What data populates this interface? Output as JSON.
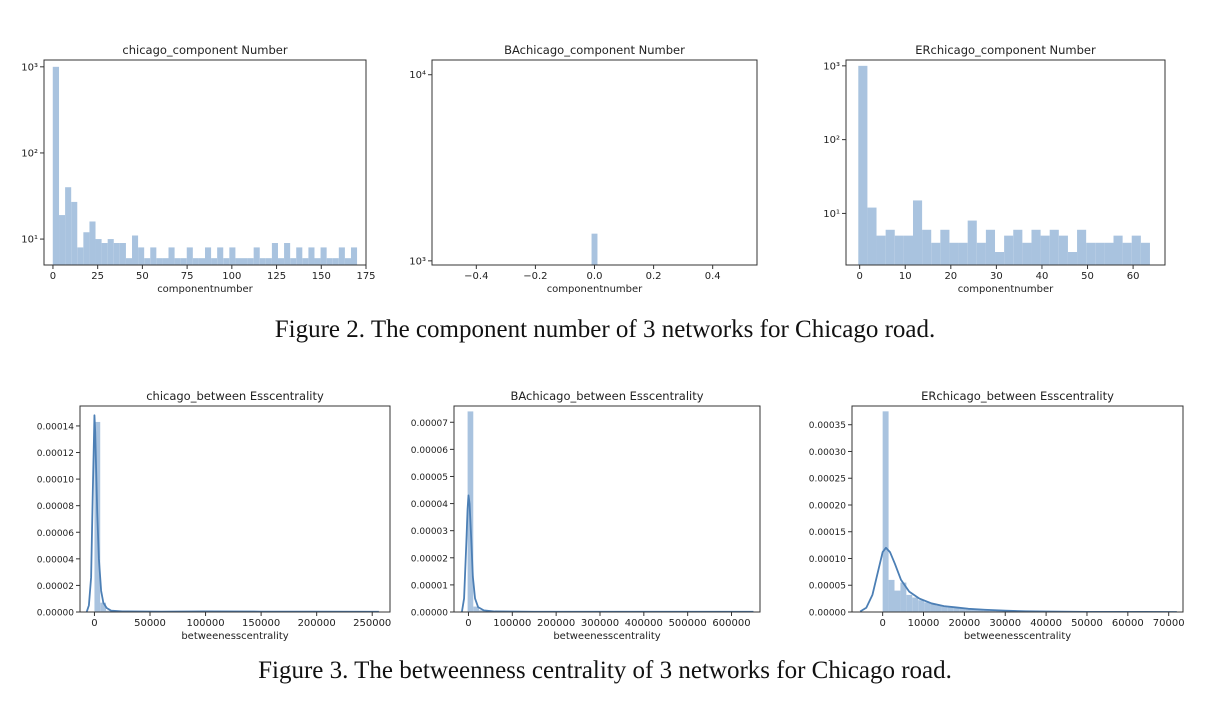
{
  "figures": [
    {
      "caption": "Figure 2. The component number of 3 networks for Chicago road."
    },
    {
      "caption": "Figure 3. The betweenness centrality of 3 networks for Chicago road."
    }
  ],
  "chart_data": [
    {
      "type": "bar",
      "title": "chicago_component Number",
      "xlabel": "componentnumber",
      "ylabel": "",
      "yscale": "log",
      "xlim": [
        -5,
        175
      ],
      "ylim": [
        5,
        1200
      ],
      "xticks": [
        0,
        25,
        50,
        75,
        100,
        125,
        150,
        175
      ],
      "yticks": [
        10,
        100,
        1000
      ],
      "ytick_labels": [
        "10¹",
        "10²",
        "10³"
      ],
      "bar_color": "#a9c3df",
      "bins": [
        [
          -0.1,
          3.4,
          1000
        ],
        [
          3.4,
          6.8,
          19
        ],
        [
          6.8,
          10.2,
          40
        ],
        [
          10.2,
          13.6,
          27
        ],
        [
          13.6,
          17.0,
          8
        ],
        [
          17.0,
          20.4,
          12
        ],
        [
          20.4,
          23.8,
          16
        ],
        [
          23.8,
          27.2,
          10
        ],
        [
          27.2,
          30.6,
          9
        ],
        [
          30.6,
          34.0,
          10
        ],
        [
          34.0,
          37.4,
          9
        ],
        [
          37.4,
          40.8,
          9
        ],
        [
          40.8,
          44.2,
          6
        ],
        [
          44.2,
          47.6,
          11
        ],
        [
          47.6,
          51.0,
          8
        ],
        [
          51.0,
          54.4,
          6
        ],
        [
          54.4,
          57.8,
          8
        ],
        [
          57.8,
          61.2,
          6
        ],
        [
          61.2,
          64.6,
          6
        ],
        [
          64.6,
          68.0,
          8
        ],
        [
          68.0,
          71.4,
          6
        ],
        [
          71.4,
          74.8,
          6
        ],
        [
          74.8,
          78.2,
          8
        ],
        [
          78.2,
          81.6,
          6
        ],
        [
          81.6,
          85.0,
          6
        ],
        [
          85.0,
          88.4,
          8
        ],
        [
          88.4,
          91.8,
          6
        ],
        [
          91.8,
          95.2,
          8
        ],
        [
          95.2,
          98.6,
          6
        ],
        [
          98.6,
          102.0,
          8
        ],
        [
          102.0,
          105.4,
          6
        ],
        [
          105.4,
          108.8,
          6
        ],
        [
          108.8,
          112.2,
          6
        ],
        [
          112.2,
          115.6,
          8
        ],
        [
          115.6,
          119.0,
          6
        ],
        [
          119.0,
          122.4,
          6
        ],
        [
          122.4,
          125.8,
          9
        ],
        [
          125.8,
          129.2,
          6
        ],
        [
          129.2,
          132.6,
          9
        ],
        [
          132.6,
          136.0,
          6
        ],
        [
          136.0,
          139.4,
          8
        ],
        [
          139.4,
          142.8,
          6
        ],
        [
          142.8,
          146.2,
          8
        ],
        [
          146.2,
          149.6,
          6
        ],
        [
          149.6,
          153.0,
          8
        ],
        [
          153.0,
          156.4,
          6
        ],
        [
          156.4,
          159.8,
          6
        ],
        [
          159.8,
          163.2,
          8
        ],
        [
          163.2,
          166.6,
          6
        ],
        [
          166.6,
          170.0,
          8
        ]
      ]
    },
    {
      "type": "bar",
      "title": "BAchicago_component Number",
      "xlabel": "componentnumber",
      "ylabel": "",
      "yscale": "log",
      "xlim": [
        -0.55,
        0.55
      ],
      "ylim": [
        950,
        12000
      ],
      "xticks": [
        -0.4,
        -0.2,
        0.0,
        0.2,
        0.4
      ],
      "xtick_labels": [
        "−0.4",
        "−0.2",
        "0.0",
        "0.2",
        "0.4"
      ],
      "yticks": [
        1000,
        10000
      ],
      "ytick_labels": [
        "10³",
        "10⁴"
      ],
      "bar_color": "#a9c3df",
      "bins": [
        [
          -0.01,
          0.01,
          1400
        ]
      ]
    },
    {
      "type": "bar",
      "title": "ERchicago_component Number",
      "xlabel": "componentnumber",
      "ylabel": "",
      "yscale": "log",
      "xlim": [
        -3,
        67
      ],
      "ylim": [
        2,
        1200
      ],
      "xticks": [
        0,
        10,
        20,
        30,
        40,
        50,
        60
      ],
      "yticks": [
        10,
        100,
        1000
      ],
      "ytick_labels": [
        "10¹",
        "10²",
        "10³"
      ],
      "bar_color": "#a9c3df",
      "bins": [
        [
          -0.3,
          1.7,
          1000
        ],
        [
          1.7,
          3.7,
          12
        ],
        [
          3.7,
          5.7,
          5
        ],
        [
          5.7,
          7.7,
          6
        ],
        [
          7.7,
          9.7,
          5
        ],
        [
          9.7,
          11.7,
          5
        ],
        [
          11.7,
          13.7,
          15
        ],
        [
          13.7,
          15.7,
          6
        ],
        [
          15.7,
          17.7,
          4
        ],
        [
          17.7,
          19.7,
          6
        ],
        [
          19.7,
          21.7,
          4
        ],
        [
          21.7,
          23.7,
          4
        ],
        [
          23.7,
          25.7,
          8
        ],
        [
          25.7,
          27.7,
          4
        ],
        [
          27.7,
          29.7,
          6
        ],
        [
          29.7,
          31.7,
          3
        ],
        [
          31.7,
          33.7,
          5
        ],
        [
          33.7,
          35.7,
          6
        ],
        [
          35.7,
          37.7,
          4
        ],
        [
          37.7,
          39.7,
          6
        ],
        [
          39.7,
          41.7,
          5
        ],
        [
          41.7,
          43.7,
          6
        ],
        [
          43.7,
          45.7,
          5
        ],
        [
          45.7,
          47.7,
          3
        ],
        [
          47.7,
          49.7,
          6
        ],
        [
          49.7,
          51.7,
          4
        ],
        [
          51.7,
          53.7,
          4
        ],
        [
          53.7,
          55.7,
          4
        ],
        [
          55.7,
          57.7,
          5
        ],
        [
          57.7,
          59.7,
          4
        ],
        [
          59.7,
          61.7,
          5
        ],
        [
          61.7,
          63.7,
          4
        ]
      ]
    },
    {
      "type": "histogram",
      "title": "chicago_between Esscentrality",
      "xlabel": "betweenesscentrality",
      "ylabel": "",
      "xlim": [
        -13000,
        266000
      ],
      "ylim": [
        0,
        0.000155
      ],
      "xticks": [
        0,
        50000,
        100000,
        150000,
        200000,
        250000
      ],
      "yticks": [
        0,
        2e-05,
        4e-05,
        6e-05,
        8e-05,
        0.0001,
        0.00012,
        0.00014
      ],
      "ytick_labels": [
        "0.00000",
        "0.00002",
        "0.00004",
        "0.00006",
        "0.00008",
        "0.00010",
        "0.00012",
        "0.00014"
      ],
      "bar_color": "#a9c3df",
      "line_color": "#4c7fb5",
      "bins": [
        [
          0,
          5200,
          0.000143
        ],
        [
          5200,
          10400,
          7e-06
        ],
        [
          10400,
          15600,
          1e-06
        ],
        [
          93000,
          98000,
          5e-07
        ]
      ],
      "kde": [
        [
          -7000,
          0
        ],
        [
          -5000,
          5e-06
        ],
        [
          -3000,
          2.6e-05
        ],
        [
          -1500,
          9e-05
        ],
        [
          -500,
          0.000128
        ],
        [
          0,
          0.000148
        ],
        [
          700,
          0.000135
        ],
        [
          1500,
          0.000108
        ],
        [
          2500,
          7.5e-05
        ],
        [
          4000,
          4e-05
        ],
        [
          6000,
          1.6e-05
        ],
        [
          8000,
          7e-06
        ],
        [
          11000,
          3e-06
        ],
        [
          15000,
          1e-06
        ],
        [
          25000,
          5e-07
        ],
        [
          60000,
          3e-07
        ],
        [
          100000,
          5e-07
        ],
        [
          150000,
          3e-07
        ],
        [
          200000,
          3e-07
        ],
        [
          256000,
          2e-07
        ]
      ]
    },
    {
      "type": "histogram",
      "title": "BAchicago_between Esscentrality",
      "xlabel": "betweenesscentrality",
      "ylabel": "",
      "xlim": [
        -33000,
        665000
      ],
      "ylim": [
        0,
        7.6e-05
      ],
      "xticks": [
        0,
        100000,
        200000,
        300000,
        400000,
        500000,
        600000
      ],
      "yticks": [
        0,
        1e-05,
        2e-05,
        3e-05,
        4e-05,
        5e-05,
        6e-05,
        7e-05
      ],
      "ytick_labels": [
        "0.00000",
        "0.00001",
        "0.00002",
        "0.00003",
        "0.00004",
        "0.00005",
        "0.00006",
        "0.00007"
      ],
      "bar_color": "#a9c3df",
      "line_color": "#4c7fb5",
      "bins": [
        [
          -2000,
          11000,
          7.4e-05
        ],
        [
          11000,
          24000,
          2e-06
        ],
        [
          24000,
          37000,
          6e-07
        ]
      ],
      "kde": [
        [
          -15000,
          0
        ],
        [
          -10000,
          5e-06
        ],
        [
          -5000,
          2.5e-05
        ],
        [
          -2000,
          3.8e-05
        ],
        [
          0,
          4.3e-05
        ],
        [
          2500,
          4e-05
        ],
        [
          6000,
          2.8e-05
        ],
        [
          10000,
          1.3e-05
        ],
        [
          15000,
          5e-06
        ],
        [
          22000,
          1.8e-06
        ],
        [
          35000,
          6e-07
        ],
        [
          60000,
          2e-07
        ],
        [
          150000,
          1e-07
        ],
        [
          300000,
          1e-07
        ],
        [
          450000,
          1e-07
        ],
        [
          600000,
          1e-07
        ],
        [
          650000,
          1e-07
        ]
      ]
    },
    {
      "type": "histogram",
      "title": "ERchicago_between Esscentrality",
      "xlabel": "betweenesscentrality",
      "ylabel": "",
      "xlim": [
        -7500,
        73500
      ],
      "ylim": [
        0,
        0.000385
      ],
      "xticks": [
        0,
        10000,
        20000,
        30000,
        40000,
        50000,
        60000,
        70000
      ],
      "yticks": [
        0,
        5e-05,
        0.0001,
        0.00015,
        0.0002,
        0.00025,
        0.0003,
        0.00035
      ],
      "ytick_labels": [
        "0.00000",
        "0.00005",
        "0.00010",
        "0.00015",
        "0.00020",
        "0.00025",
        "0.00030",
        "0.00035"
      ],
      "bar_color": "#a9c3df",
      "line_color": "#4c7fb5",
      "bins": [
        [
          0,
          1450,
          0.000375
        ],
        [
          1450,
          2900,
          6e-05
        ],
        [
          2900,
          4350,
          4e-05
        ],
        [
          4350,
          5800,
          5.5e-05
        ],
        [
          5800,
          7250,
          3.2e-05
        ],
        [
          7250,
          8700,
          2.7e-05
        ],
        [
          8700,
          10150,
          2.2e-05
        ],
        [
          10150,
          11600,
          1.8e-05
        ],
        [
          11600,
          13050,
          1.5e-05
        ],
        [
          13050,
          14500,
          1.2e-05
        ],
        [
          14500,
          15950,
          1e-05
        ],
        [
          15950,
          17400,
          9e-06
        ],
        [
          17400,
          18850,
          8e-06
        ],
        [
          18850,
          20300,
          7e-06
        ],
        [
          20300,
          21750,
          6e-06
        ],
        [
          21750,
          23200,
          5e-06
        ],
        [
          23200,
          24650,
          4.5e-06
        ],
        [
          24650,
          26100,
          4e-06
        ],
        [
          26100,
          27550,
          3.5e-06
        ],
        [
          27550,
          29000,
          3e-06
        ],
        [
          29000,
          30450,
          2.5e-06
        ],
        [
          30450,
          31900,
          2e-06
        ],
        [
          31900,
          33350,
          1.8e-06
        ],
        [
          33350,
          34800,
          1.5e-06
        ],
        [
          34800,
          36250,
          1.2e-06
        ],
        [
          36250,
          40000,
          1e-06
        ],
        [
          40000,
          45000,
          8e-07
        ]
      ],
      "kde": [
        [
          -5500,
          1e-06
        ],
        [
          -4000,
          8e-06
        ],
        [
          -2500,
          3.2e-05
        ],
        [
          -1000,
          8e-05
        ],
        [
          0,
          0.000112
        ],
        [
          800,
          0.00012
        ],
        [
          1800,
          0.000112
        ],
        [
          3000,
          9e-05
        ],
        [
          4500,
          6e-05
        ],
        [
          6500,
          3.8e-05
        ],
        [
          9000,
          2.5e-05
        ],
        [
          12000,
          1.6e-05
        ],
        [
          15000,
          1.1e-05
        ],
        [
          18000,
          8.5e-06
        ],
        [
          21000,
          6e-06
        ],
        [
          25000,
          4.2e-06
        ],
        [
          30000,
          2.5e-06
        ],
        [
          35000,
          1.4e-06
        ],
        [
          40000,
          8e-07
        ],
        [
          50000,
          3e-07
        ],
        [
          60000,
          1e-07
        ],
        [
          72000,
          5e-08
        ]
      ]
    }
  ]
}
